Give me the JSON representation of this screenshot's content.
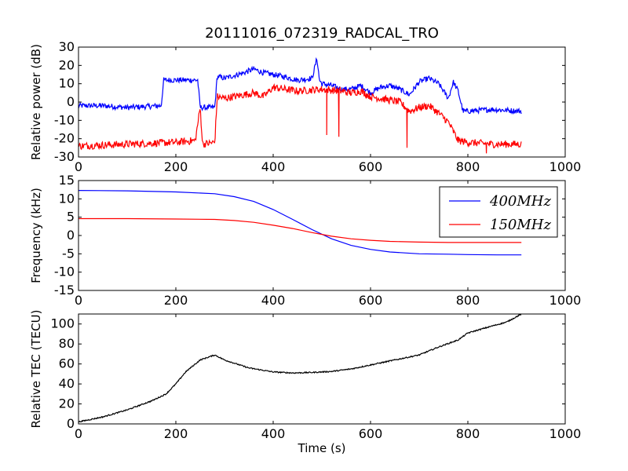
{
  "title": "20111016_072319_RADCAL_TRO",
  "chart_data": [
    {
      "type": "line",
      "ylabel": "Relative power (dB)",
      "xlim": [
        0,
        1000
      ],
      "ylim": [
        -30,
        30
      ],
      "xticks": [
        0,
        200,
        400,
        600,
        800,
        1000
      ],
      "yticks": [
        -30,
        -20,
        -10,
        0,
        10,
        20,
        30
      ],
      "series": [
        {
          "color": "#0000ff",
          "x": [
            0,
            50,
            100,
            170,
            175,
            200,
            245,
            250,
            280,
            285,
            300,
            340,
            360,
            380,
            400,
            420,
            450,
            480,
            490,
            495,
            500,
            520,
            540,
            560,
            580,
            600,
            620,
            640,
            660,
            680,
            700,
            720,
            740,
            760,
            770,
            780,
            790,
            800,
            850,
            910
          ],
          "y": [
            -2,
            -2,
            -3,
            -2,
            12,
            12,
            12,
            -3,
            -3,
            14,
            13,
            16,
            18,
            16,
            15,
            14,
            12,
            13,
            24,
            12,
            10,
            9,
            7,
            7,
            9,
            5,
            8,
            9,
            7,
            4,
            11,
            13,
            10,
            2,
            11,
            6,
            -5,
            -5,
            -4,
            -5
          ],
          "noise": 1.5
        },
        {
          "color": "#ff0000",
          "x": [
            0,
            100,
            200,
            240,
            250,
            255,
            280,
            285,
            300,
            360,
            380,
            400,
            450,
            500,
            540,
            560,
            580,
            600,
            640,
            660,
            680,
            700,
            720,
            740,
            760,
            780,
            800,
            850,
            910
          ],
          "y": [
            -24,
            -23,
            -22,
            -21,
            -3,
            -23,
            -22,
            3,
            2,
            5,
            3,
            8,
            6,
            7,
            6,
            5,
            6,
            3,
            1,
            0,
            -5,
            -3,
            -2,
            -6,
            -11,
            -21,
            -22,
            -23,
            -23
          ],
          "noise": 2.0,
          "spikes": [
            [
              510,
              -18
            ],
            [
              535,
              -19
            ],
            [
              675,
              -25
            ],
            [
              838,
              -28
            ]
          ]
        }
      ]
    },
    {
      "type": "line",
      "ylabel": "Frequency (kHz)",
      "xlim": [
        0,
        1000
      ],
      "ylim": [
        -15,
        15
      ],
      "xticks": [
        0,
        200,
        400,
        600,
        800,
        1000
      ],
      "yticks": [
        -15,
        -10,
        -5,
        0,
        5,
        10,
        15
      ],
      "legend_position": "top-right",
      "series": [
        {
          "name": "400MHz",
          "color": "#0000ff",
          "x": [
            0,
            100,
            200,
            280,
            320,
            360,
            400,
            440,
            480,
            520,
            560,
            600,
            640,
            700,
            760,
            800,
            860,
            910
          ],
          "y": [
            12.3,
            12.2,
            11.9,
            11.4,
            10.6,
            9.3,
            7.1,
            4.4,
            1.6,
            -0.9,
            -2.7,
            -3.8,
            -4.5,
            -5.0,
            -5.1,
            -5.2,
            -5.3,
            -5.3
          ]
        },
        {
          "name": "150MHz",
          "color": "#ff0000",
          "x": [
            0,
            100,
            200,
            280,
            320,
            360,
            400,
            440,
            480,
            520,
            560,
            600,
            640,
            700,
            760,
            800,
            860,
            910
          ],
          "y": [
            4.6,
            4.6,
            4.5,
            4.4,
            4.1,
            3.6,
            2.8,
            1.9,
            0.8,
            -0.2,
            -0.9,
            -1.3,
            -1.6,
            -1.8,
            -1.9,
            -1.9,
            -1.9,
            -1.9
          ]
        }
      ]
    },
    {
      "type": "line",
      "xlabel": "Time (s)",
      "ylabel": "Relative TEC (TECU)",
      "xlim": [
        0,
        1000
      ],
      "ylim": [
        0,
        110
      ],
      "xticks": [
        0,
        200,
        400,
        600,
        800,
        1000
      ],
      "yticks": [
        0,
        20,
        40,
        60,
        80,
        100
      ],
      "series": [
        {
          "color": "#000000",
          "x": [
            0,
            20,
            50,
            100,
            150,
            180,
            200,
            220,
            250,
            280,
            300,
            350,
            400,
            440,
            480,
            520,
            560,
            600,
            650,
            700,
            740,
            780,
            800,
            850,
            880,
            910
          ],
          "y": [
            2,
            4,
            7,
            14,
            23,
            30,
            40,
            52,
            64,
            69,
            64,
            56,
            52,
            51,
            51.5,
            52.5,
            55,
            59,
            64,
            69,
            77,
            84,
            91,
            98,
            102,
            110
          ],
          "noise": 0.6
        }
      ]
    }
  ]
}
